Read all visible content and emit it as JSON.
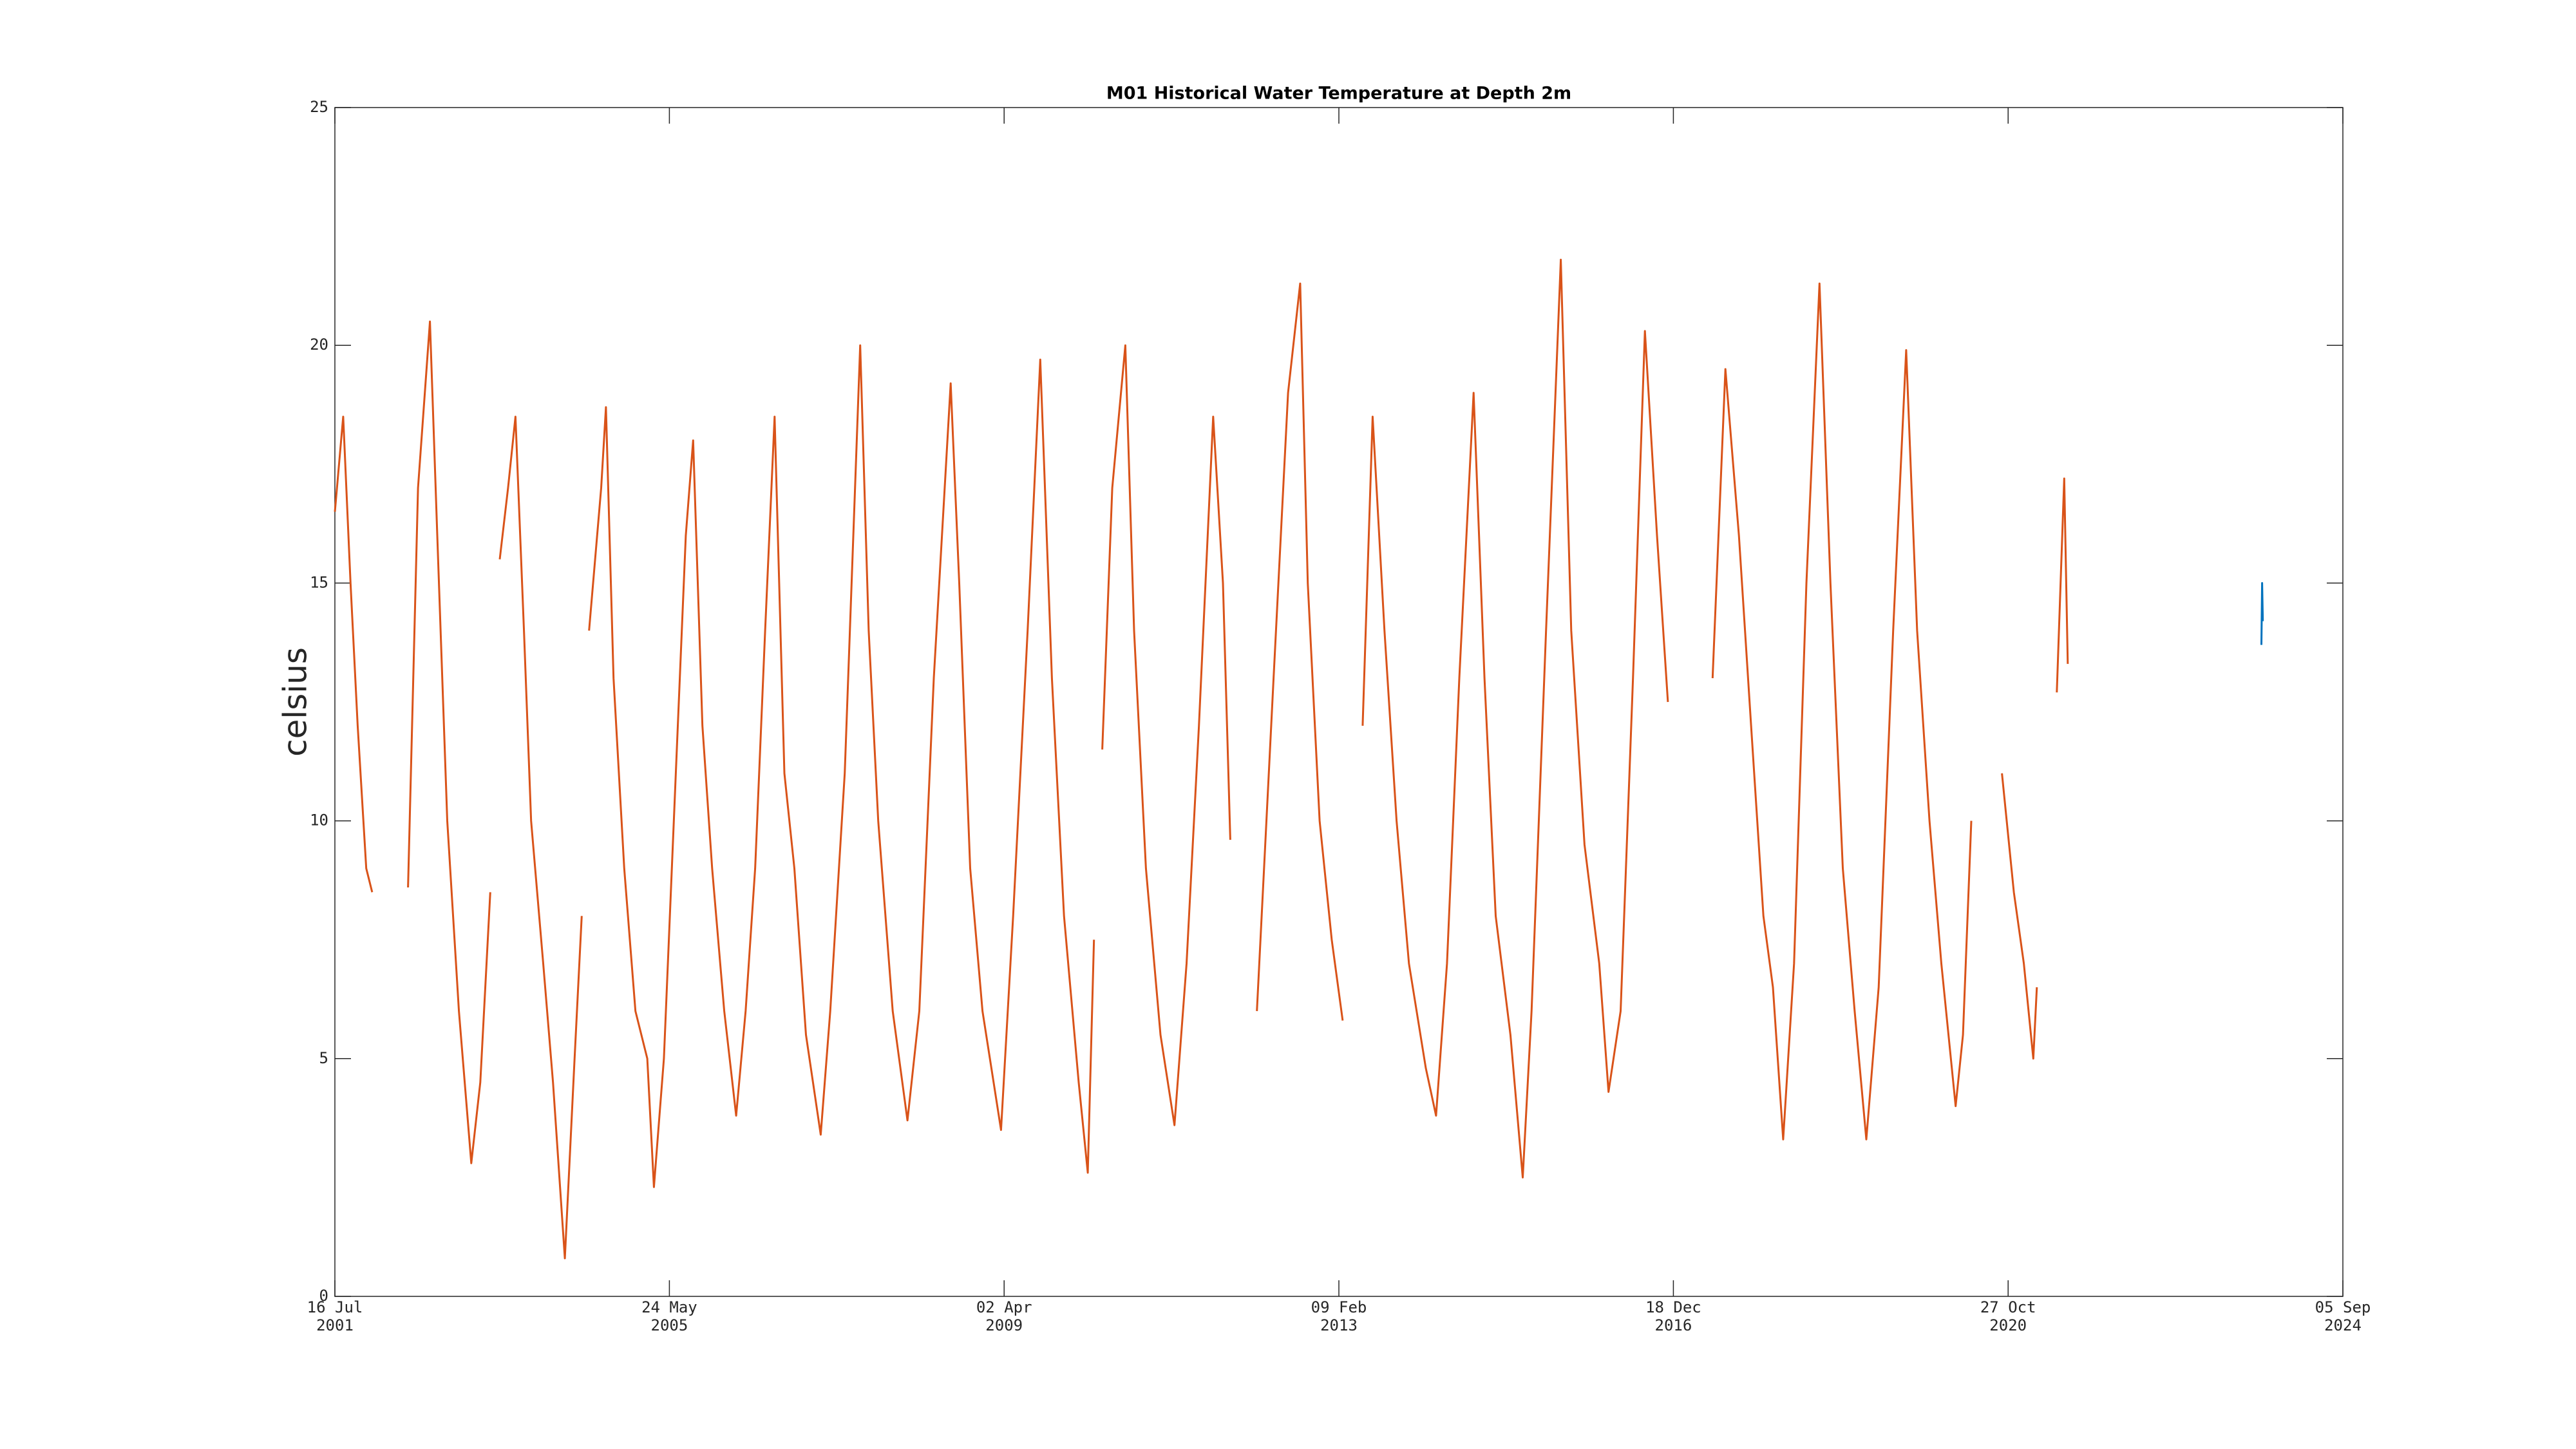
{
  "chart_data": {
    "type": "line",
    "title": "M01 Historical Water Temperature at Depth 2m",
    "y_label": "celsius",
    "xlim": [
      "2001-07-16",
      "2024-09-05"
    ],
    "xticks": [
      {
        "value": "2001-07-16",
        "label": [
          "16 Jul",
          "2001"
        ]
      },
      {
        "value": "2005-05-24",
        "label": [
          "24 May",
          "2005"
        ]
      },
      {
        "value": "2009-04-02",
        "label": [
          "02 Apr",
          "2009"
        ]
      },
      {
        "value": "2013-02-09",
        "label": [
          "09 Feb",
          "2013"
        ]
      },
      {
        "value": "2016-12-18",
        "label": [
          "18 Dec",
          "2016"
        ]
      },
      {
        "value": "2020-10-27",
        "label": [
          "27 Oct",
          "2020"
        ]
      },
      {
        "value": "2024-09-05",
        "label": [
          "05 Sep",
          "2024"
        ]
      }
    ],
    "ylim": [
      0,
      25
    ],
    "yticks": [
      0,
      5,
      10,
      15,
      20,
      25
    ],
    "grid": false,
    "series": [
      {
        "color": "#d95319",
        "x": [
          "2001-07-16",
          "2001-08-20",
          "2001-09-20",
          "2001-10-20",
          "2001-11-25",
          "2001-12-20",
          "2002-03-01",
          "2002-05-20",
          "2002-07-01",
          "2002-08-20",
          "2002-09-20",
          "2002-11-01",
          "2002-12-20",
          "2003-02-10",
          "2003-03-20",
          "2003-05-01",
          "2003-05-20",
          "2003-06-10",
          "2003-07-15",
          "2003-08-15",
          "2003-09-20",
          "2003-10-20",
          "2003-12-10",
          "2004-01-20",
          "2004-03-10",
          "2004-04-20",
          "2004-05-20",
          "2004-06-01",
          "2004-06-20",
          "2004-08-10",
          "2004-08-30",
          "2004-10-01",
          "2004-11-15",
          "2005-01-01",
          "2005-02-20",
          "2005-03-20",
          "2005-05-01",
          "2005-06-20",
          "2005-08-01",
          "2005-09-01",
          "2005-10-10",
          "2005-11-20",
          "2006-01-10",
          "2006-03-01",
          "2006-04-10",
          "2006-05-20",
          "2006-07-01",
          "2006-08-10",
          "2006-09-20",
          "2006-11-01",
          "2006-12-20",
          "2007-02-20",
          "2007-04-01",
          "2007-06-01",
          "2007-08-05",
          "2007-09-10",
          "2007-10-20",
          "2007-12-20",
          "2008-02-20",
          "2008-04-10",
          "2008-06-10",
          "2008-08-20",
          "2008-09-25",
          "2008-11-10",
          "2009-01-01",
          "2009-03-20",
          "2009-05-10",
          "2009-07-10",
          "2009-09-01",
          "2009-10-20",
          "2009-12-10",
          "2010-02-10",
          "2010-03-20",
          "2010-04-15",
          "2010-05-01",
          "2010-05-20",
          "2010-07-01",
          "2010-08-25",
          "2010-10-01",
          "2010-11-20",
          "2011-01-20",
          "2011-03-20",
          "2011-05-10",
          "2011-07-01",
          "2011-08-30",
          "2011-10-10",
          "2011-11-10",
          "2011-12-15",
          "2012-03-01",
          "2012-05-10",
          "2012-07-10",
          "2012-08-30",
          "2012-10-01",
          "2012-11-20",
          "2013-01-10",
          "2013-02-25",
          "2013-04-01",
          "2013-05-20",
          "2013-07-01",
          "2013-08-20",
          "2013-10-10",
          "2013-12-01",
          "2014-02-10",
          "2014-03-25",
          "2014-05-10",
          "2014-07-01",
          "2014-08-30",
          "2014-10-15",
          "2014-12-01",
          "2015-02-01",
          "2015-03-25",
          "2015-05-01",
          "2015-07-01",
          "2015-09-01",
          "2015-10-15",
          "2015-12-10",
          "2016-02-10",
          "2016-03-20",
          "2016-05-10",
          "2016-07-01",
          "2016-08-20",
          "2016-10-10",
          "2016-11-25",
          "2017-02-01",
          "2017-06-01",
          "2017-07-25",
          "2017-09-20",
          "2017-11-10",
          "2018-01-01",
          "2018-02-10",
          "2018-03-25",
          "2018-05-10",
          "2018-07-01",
          "2018-08-25",
          "2018-10-10",
          "2018-12-01",
          "2019-01-20",
          "2019-03-10",
          "2019-05-01",
          "2019-07-01",
          "2019-08-25",
          "2019-10-10",
          "2019-12-01",
          "2020-01-20",
          "2020-03-20",
          "2020-04-20",
          "2020-05-25",
          "2020-07-01",
          "2020-10-01",
          "2020-11-20",
          "2021-01-01",
          "2021-02-10",
          "2021-02-25",
          "2021-04-01",
          "2021-05-20",
          "2021-06-20",
          "2021-07-05"
        ],
        "values": [
          16.5,
          18.5,
          15,
          12,
          9,
          8.5,
          null,
          8.6,
          17,
          20.5,
          16,
          10,
          6,
          2.8,
          4.5,
          8.5,
          null,
          15.5,
          17,
          18.5,
          14,
          10,
          7,
          4.5,
          0.8,
          5,
          8,
          null,
          14,
          17,
          18.7,
          13,
          9,
          6,
          5,
          2.3,
          5,
          11,
          16,
          18,
          12,
          9,
          6,
          3.8,
          6,
          9,
          14,
          18.5,
          11,
          9,
          5.5,
          3.4,
          6,
          11,
          20,
          14,
          10,
          6,
          3.7,
          6,
          13,
          19.2,
          15,
          9,
          6,
          3.5,
          8,
          14,
          19.7,
          13,
          8,
          4.5,
          2.6,
          7.5,
          null,
          11.5,
          17,
          20,
          14,
          9,
          5.5,
          3.6,
          7,
          12,
          18.5,
          15,
          9.6,
          null,
          6,
          13,
          19,
          21.3,
          15,
          10,
          7.5,
          5.8,
          null,
          12,
          18.5,
          14,
          10,
          7,
          4.8,
          3.8,
          7,
          13,
          19,
          13,
          8,
          5.5,
          2.5,
          6,
          14,
          21.8,
          14,
          9.5,
          7,
          4.3,
          6,
          13,
          20.3,
          16,
          12.5,
          null,
          13,
          19.5,
          16,
          12,
          8,
          6.5,
          3.3,
          7,
          15,
          21.3,
          15,
          9,
          6,
          3.3,
          6.5,
          14,
          19.9,
          14,
          10,
          7,
          4,
          5.5,
          10,
          null,
          11,
          8.5,
          7,
          5,
          6.5,
          null,
          12.7,
          17.2,
          13.3
        ]
      },
      {
        "color": "#0072bd",
        "x": [
          "2023-09-28",
          "2023-10-01",
          "2023-10-04"
        ],
        "values": [
          13.7,
          15,
          14.2
        ]
      }
    ]
  }
}
